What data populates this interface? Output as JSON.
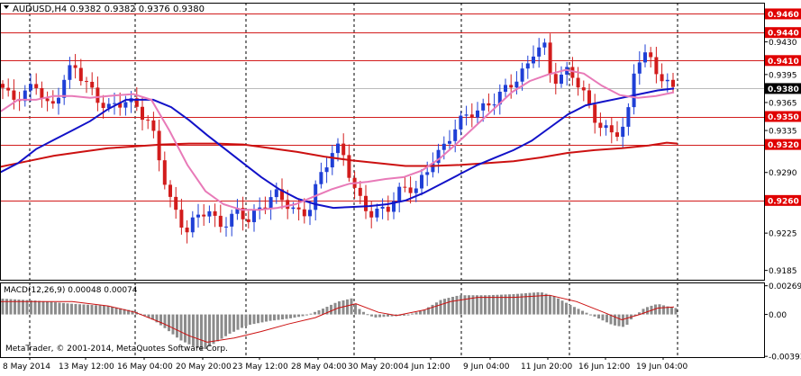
{
  "window": {
    "symbol_header": "AUDUSD,H4  0.9382 0.9382 0.9376 0.9380",
    "copyright": "MetaTrader, © 2001-2014, MetaQuotes Software Corp."
  },
  "colors": {
    "background": "#ffffff",
    "bull_candle": "#1f3fd6",
    "bear_candle": "#d21c1c",
    "level_line": "#d21c1c",
    "price_label_bg": "#e00000",
    "current_price_bg": "#000000",
    "ma_fast": "#e87ab8",
    "ma_mid": "#1212c8",
    "ma_slow": "#cc1111",
    "macd_hist": "#8c8c8c",
    "macd_signal": "#cc1111",
    "grid": "#000000"
  },
  "chart_data": [
    {
      "type": "candlestick",
      "symbol": "AUDUSD",
      "timeframe": "H4",
      "ohlc_header": {
        "open": 0.9382,
        "high": 0.9382,
        "low": 0.9376,
        "close": 0.938
      },
      "ylim": [
        0.9175,
        0.9472
      ],
      "y_ticks": [
        "0.9460",
        "0.9430",
        "0.9395",
        "0.9365",
        "0.9335",
        "0.9290",
        "0.9260",
        "0.9225",
        "0.9185"
      ],
      "horizontal_levels": [
        0.946,
        0.944,
        0.941,
        0.935,
        0.932,
        0.926
      ],
      "current_price": "0.9380",
      "x_labels": [
        "8 May 2014",
        "13 May 12:00",
        "16 May 04:00",
        "20 May 20:00",
        "23 May 12:00",
        "28 May 04:00",
        "30 May 20:00",
        "4 Jun 12:00",
        "9 Jun 04:00",
        "11 Jun 20:00",
        "16 Jun 12:00",
        "19 Jun 04:00"
      ],
      "close_path": [
        [
          0,
          0.9385
        ],
        [
          12,
          0.9368
        ],
        [
          28,
          0.9375
        ],
        [
          40,
          0.9385
        ],
        [
          56,
          0.9355
        ],
        [
          72,
          0.9392
        ],
        [
          82,
          0.9405
        ],
        [
          96,
          0.9385
        ],
        [
          106,
          0.937
        ],
        [
          122,
          0.9358
        ],
        [
          138,
          0.9368
        ],
        [
          152,
          0.936
        ],
        [
          164,
          0.9345
        ],
        [
          172,
          0.9325
        ],
        [
          178,
          0.93
        ],
        [
          188,
          0.9262
        ],
        [
          198,
          0.924
        ],
        [
          208,
          0.9228
        ],
        [
          218,
          0.9242
        ],
        [
          230,
          0.9252
        ],
        [
          242,
          0.9232
        ],
        [
          252,
          0.9238
        ],
        [
          264,
          0.9248
        ],
        [
          276,
          0.924
        ],
        [
          290,
          0.9252
        ],
        [
          304,
          0.9268
        ],
        [
          318,
          0.9258
        ],
        [
          330,
          0.9245
        ],
        [
          342,
          0.9248
        ],
        [
          352,
          0.9278
        ],
        [
          362,
          0.93
        ],
        [
          372,
          0.9318
        ],
        [
          382,
          0.9308
        ],
        [
          392,
          0.9275
        ],
        [
          402,
          0.9255
        ],
        [
          414,
          0.9245
        ],
        [
          430,
          0.9252
        ],
        [
          442,
          0.9268
        ],
        [
          452,
          0.9275
        ],
        [
          462,
          0.9272
        ],
        [
          472,
          0.9288
        ],
        [
          480,
          0.9305
        ],
        [
          492,
          0.9315
        ],
        [
          504,
          0.9338
        ],
        [
          514,
          0.9348
        ],
        [
          524,
          0.9355
        ],
        [
          536,
          0.9358
        ],
        [
          548,
          0.9368
        ],
        [
          560,
          0.9378
        ],
        [
          572,
          0.939
        ],
        [
          584,
          0.94
        ],
        [
          594,
          0.9425
        ],
        [
          604,
          0.9425
        ],
        [
          612,
          0.939
        ],
        [
          622,
          0.9392
        ],
        [
          632,
          0.94
        ],
        [
          644,
          0.9382
        ],
        [
          656,
          0.9355
        ],
        [
          666,
          0.934
        ],
        [
          676,
          0.9332
        ],
        [
          688,
          0.9335
        ],
        [
          696,
          0.9342
        ],
        [
          702,
          0.9395
        ],
        [
          712,
          0.9418
        ],
        [
          722,
          0.941
        ],
        [
          730,
          0.9398
        ],
        [
          738,
          0.9385
        ],
        [
          748,
          0.938
        ]
      ],
      "ma_fast_path": [
        [
          0,
          0.9355
        ],
        [
          20,
          0.9368
        ],
        [
          40,
          0.9368
        ],
        [
          60,
          0.9372
        ],
        [
          80,
          0.9372
        ],
        [
          100,
          0.937
        ],
        [
          120,
          0.9372
        ],
        [
          148,
          0.9374
        ],
        [
          168,
          0.9368
        ],
        [
          188,
          0.9335
        ],
        [
          208,
          0.9298
        ],
        [
          228,
          0.927
        ],
        [
          248,
          0.9256
        ],
        [
          268,
          0.925
        ],
        [
          288,
          0.925
        ],
        [
          308,
          0.9252
        ],
        [
          328,
          0.9256
        ],
        [
          348,
          0.9264
        ],
        [
          368,
          0.9272
        ],
        [
          388,
          0.9278
        ],
        [
          408,
          0.928
        ],
        [
          428,
          0.9283
        ],
        [
          448,
          0.9285
        ],
        [
          468,
          0.9292
        ],
        [
          488,
          0.9305
        ],
        [
          508,
          0.9322
        ],
        [
          528,
          0.934
        ],
        [
          548,
          0.9358
        ],
        [
          568,
          0.9376
        ],
        [
          588,
          0.9388
        ],
        [
          608,
          0.9395
        ],
        [
          628,
          0.94
        ],
        [
          648,
          0.9396
        ],
        [
          668,
          0.9383
        ],
        [
          688,
          0.9373
        ],
        [
          708,
          0.937
        ],
        [
          728,
          0.9372
        ],
        [
          748,
          0.9376
        ]
      ],
      "ma_mid_path": [
        [
          0,
          0.929
        ],
        [
          20,
          0.93
        ],
        [
          40,
          0.9315
        ],
        [
          60,
          0.9325
        ],
        [
          80,
          0.9335
        ],
        [
          100,
          0.9345
        ],
        [
          120,
          0.9358
        ],
        [
          140,
          0.9368
        ],
        [
          170,
          0.9368
        ],
        [
          190,
          0.936
        ],
        [
          210,
          0.9346
        ],
        [
          230,
          0.933
        ],
        [
          250,
          0.9315
        ],
        [
          270,
          0.93
        ],
        [
          290,
          0.9285
        ],
        [
          310,
          0.9272
        ],
        [
          330,
          0.9262
        ],
        [
          350,
          0.9256
        ],
        [
          370,
          0.9252
        ],
        [
          390,
          0.9253
        ],
        [
          410,
          0.9254
        ],
        [
          430,
          0.9256
        ],
        [
          450,
          0.926
        ],
        [
          470,
          0.9268
        ],
        [
          490,
          0.9278
        ],
        [
          510,
          0.9288
        ],
        [
          530,
          0.9298
        ],
        [
          550,
          0.9306
        ],
        [
          570,
          0.9314
        ],
        [
          590,
          0.9324
        ],
        [
          610,
          0.9338
        ],
        [
          630,
          0.9352
        ],
        [
          650,
          0.9362
        ],
        [
          670,
          0.9366
        ],
        [
          690,
          0.937
        ],
        [
          710,
          0.9374
        ],
        [
          730,
          0.9378
        ],
        [
          748,
          0.938
        ]
      ],
      "ma_slow_path": [
        [
          0,
          0.9296
        ],
        [
          30,
          0.9302
        ],
        [
          60,
          0.9308
        ],
        [
          90,
          0.9312
        ],
        [
          120,
          0.9316
        ],
        [
          150,
          0.9318
        ],
        [
          180,
          0.932
        ],
        [
          210,
          0.9321
        ],
        [
          240,
          0.9321
        ],
        [
          270,
          0.932
        ],
        [
          300,
          0.9316
        ],
        [
          330,
          0.9312
        ],
        [
          360,
          0.9307
        ],
        [
          390,
          0.9303
        ],
        [
          420,
          0.93
        ],
        [
          450,
          0.9297
        ],
        [
          480,
          0.9297
        ],
        [
          510,
          0.9298
        ],
        [
          540,
          0.93
        ],
        [
          570,
          0.9302
        ],
        [
          600,
          0.9306
        ],
        [
          630,
          0.9311
        ],
        [
          660,
          0.9314
        ],
        [
          690,
          0.9316
        ],
        [
          720,
          0.9319
        ],
        [
          740,
          0.9322
        ],
        [
          752,
          0.9321
        ]
      ]
    },
    {
      "type": "bar",
      "indicator": "MACD",
      "label": "MACD(12,26,9) 0.00048 0.00074",
      "ylim": [
        -0.004,
        0.003
      ],
      "y_ticks": [
        "0.00269",
        "0.00",
        "-0.00393"
      ],
      "histogram_path": [
        [
          0,
          0.0015
        ],
        [
          40,
          0.0013
        ],
        [
          80,
          0.001
        ],
        [
          120,
          0.0008
        ],
        [
          150,
          0.0003
        ],
        [
          170,
          -0.0005
        ],
        [
          185,
          -0.0014
        ],
        [
          200,
          -0.0024
        ],
        [
          215,
          -0.003
        ],
        [
          225,
          -0.0034
        ],
        [
          240,
          -0.0026
        ],
        [
          255,
          -0.0018
        ],
        [
          275,
          -0.001
        ],
        [
          300,
          -0.0006
        ],
        [
          320,
          -0.0004
        ],
        [
          340,
          -0.0001
        ],
        [
          360,
          0.0006
        ],
        [
          375,
          0.0012
        ],
        [
          390,
          0.0015
        ],
        [
          400,
          0.0004
        ],
        [
          415,
          -0.0003
        ],
        [
          430,
          -0.0002
        ],
        [
          450,
          -0.0001
        ],
        [
          470,
          0.0004
        ],
        [
          490,
          0.0014
        ],
        [
          510,
          0.0018
        ],
        [
          540,
          0.0018
        ],
        [
          570,
          0.0019
        ],
        [
          600,
          0.0021
        ],
        [
          615,
          0.0017
        ],
        [
          635,
          0.0008
        ],
        [
          660,
          -0.0002
        ],
        [
          680,
          -0.001
        ],
        [
          694,
          -0.0012
        ],
        [
          700,
          -0.0005
        ],
        [
          715,
          0.0006
        ],
        [
          730,
          0.001
        ],
        [
          748,
          0.0006
        ]
      ],
      "signal_path": [
        [
          0,
          0.0012
        ],
        [
          40,
          0.0012
        ],
        [
          80,
          0.0012
        ],
        [
          120,
          0.0008
        ],
        [
          150,
          0.0002
        ],
        [
          180,
          -0.0008
        ],
        [
          210,
          -0.002
        ],
        [
          230,
          -0.0026
        ],
        [
          260,
          -0.0022
        ],
        [
          290,
          -0.0016
        ],
        [
          320,
          -0.0009
        ],
        [
          350,
          -0.0003
        ],
        [
          375,
          0.0006
        ],
        [
          395,
          0.001
        ],
        [
          420,
          0.0002
        ],
        [
          440,
          -0.0001
        ],
        [
          470,
          0.0004
        ],
        [
          500,
          0.0012
        ],
        [
          530,
          0.0016
        ],
        [
          570,
          0.0016
        ],
        [
          610,
          0.0018
        ],
        [
          640,
          0.0012
        ],
        [
          670,
          0.0002
        ],
        [
          690,
          -0.0005
        ],
        [
          710,
          0.0
        ],
        [
          730,
          0.0006
        ],
        [
          748,
          0.0007
        ]
      ]
    }
  ]
}
